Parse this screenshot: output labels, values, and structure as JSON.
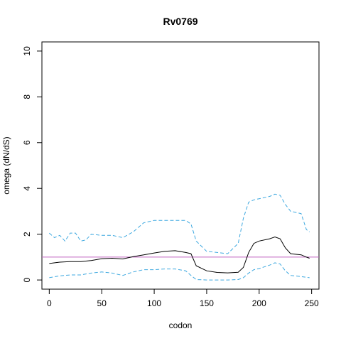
{
  "chart_data": {
    "type": "line",
    "title": "Rv0769",
    "xlabel": "codon",
    "ylabel": "omega (dN/dS)",
    "xlim": [
      -7,
      257
    ],
    "ylim": [
      -0.4,
      10.4
    ],
    "xticks": [
      0,
      50,
      100,
      150,
      200,
      250
    ],
    "yticks": [
      0,
      2,
      4,
      6,
      8,
      10
    ],
    "grid": false,
    "legend": "none",
    "reference_line": {
      "y": 1,
      "color": "#c060c0"
    },
    "colors": {
      "estimate": "#000000",
      "interval": "#3fa9e0",
      "reference": "#c060c0"
    },
    "series": [
      {
        "style": "solid",
        "x": [
          0,
          10,
          20,
          30,
          40,
          50,
          60,
          70,
          80,
          90,
          100,
          110,
          120,
          130,
          135,
          140,
          150,
          160,
          170,
          180,
          185,
          190,
          195,
          200,
          210,
          215,
          220,
          225,
          230,
          240,
          245,
          248
        ],
        "y": [
          0.72,
          0.78,
          0.8,
          0.8,
          0.85,
          0.93,
          0.95,
          0.92,
          1.02,
          1.1,
          1.18,
          1.25,
          1.28,
          1.2,
          1.15,
          0.62,
          0.4,
          0.33,
          0.31,
          0.34,
          0.55,
          1.2,
          1.6,
          1.7,
          1.8,
          1.88,
          1.8,
          1.4,
          1.15,
          1.1,
          1.0,
          0.95
        ]
      },
      {
        "style": "dashed",
        "x": [
          0,
          5,
          10,
          15,
          20,
          25,
          30,
          35,
          40,
          50,
          60,
          70,
          80,
          90,
          100,
          110,
          120,
          130,
          135,
          140,
          150,
          160,
          170,
          180,
          185,
          190,
          195,
          200,
          210,
          215,
          220,
          225,
          230,
          240,
          245,
          248
        ],
        "y": [
          2.05,
          1.85,
          1.95,
          1.7,
          2.05,
          2.05,
          1.7,
          1.75,
          2.0,
          1.95,
          1.95,
          1.85,
          2.1,
          2.5,
          2.6,
          2.6,
          2.6,
          2.6,
          2.45,
          1.7,
          1.25,
          1.2,
          1.15,
          1.6,
          2.7,
          3.4,
          3.5,
          3.55,
          3.65,
          3.75,
          3.7,
          3.3,
          3.0,
          2.9,
          2.2,
          2.1
        ]
      },
      {
        "style": "dashed",
        "x": [
          0,
          10,
          20,
          30,
          40,
          50,
          60,
          70,
          80,
          90,
          100,
          110,
          120,
          130,
          135,
          140,
          150,
          160,
          170,
          180,
          185,
          190,
          195,
          200,
          210,
          215,
          220,
          225,
          230,
          240,
          248
        ],
        "y": [
          0.1,
          0.18,
          0.22,
          0.22,
          0.3,
          0.35,
          0.3,
          0.2,
          0.35,
          0.45,
          0.45,
          0.48,
          0.48,
          0.4,
          0.2,
          0.02,
          0.0,
          0.0,
          0.0,
          0.02,
          0.1,
          0.3,
          0.45,
          0.5,
          0.65,
          0.75,
          0.7,
          0.4,
          0.2,
          0.15,
          0.1
        ]
      }
    ]
  }
}
